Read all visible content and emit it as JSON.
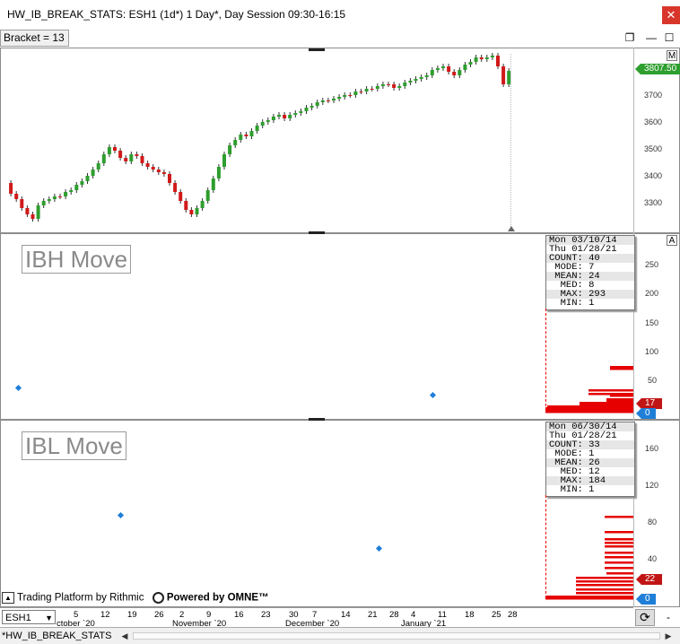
{
  "window": {
    "title": "HW_IB_BREAK_STATS: ESH1 (1d*) 1 Day*, Day Session 09:30-16:15",
    "close_label": "✕",
    "restore_label": "❐",
    "maximize_label": "☐"
  },
  "bracket": {
    "label": "Bracket = 13"
  },
  "price_panel": {
    "pin_label": "M",
    "last_price": "3807.50",
    "y_ticks": [
      "3800",
      "3700",
      "3600",
      "3500",
      "3400",
      "3300"
    ],
    "colors": {
      "up": "#2e9e2e",
      "down": "#d11919",
      "price_tag": "#2e9e2e"
    }
  },
  "ibh_panel": {
    "title": "IBH Move",
    "auto_label": "A",
    "stats": [
      "Mon 03/10/14",
      "Thu 01/28/21",
      "COUNT: 40",
      " MODE: 7",
      " MEAN: 24",
      "  MED: 8",
      "  MAX: 293",
      "  MIN: 1"
    ],
    "y_ticks": [
      "250",
      "200",
      "150",
      "100",
      "50"
    ],
    "value_tag": "17",
    "zero_tag": "0",
    "colors": {
      "bar": "#e60000",
      "tag": "#c11515",
      "zero_tag": "#1f7fd8",
      "marker": "#1f7fd8"
    }
  },
  "ibl_panel": {
    "title": "IBL Move",
    "stats": [
      "Mon 06/30/14",
      "Thu 01/28/21",
      "COUNT: 33",
      " MODE: 1",
      " MEAN: 26",
      "  MED: 12",
      "  MAX: 184",
      "  MIN: 1"
    ],
    "y_ticks": [
      "160",
      "120",
      "80",
      "40"
    ],
    "value_tag": "22",
    "zero_tag": "0",
    "colors": {
      "bar": "#e60000",
      "tag": "#c11515",
      "zero_tag": "#1f7fd8",
      "marker": "#1f7fd8"
    }
  },
  "footer": {
    "brand_left": "Trading Platform by Rithmic",
    "brand_right": "Powered by OMNE™"
  },
  "x_axis": {
    "day_ticks": [
      "5",
      "12",
      "19",
      "26",
      "2",
      "9",
      "16",
      "23",
      "30",
      "7",
      "14",
      "21",
      "28",
      "4",
      "11",
      "18",
      "25",
      "28"
    ],
    "months": [
      "ctober `20",
      "November `20",
      "December `20",
      "January `21"
    ]
  },
  "symbol_selector": {
    "value": "ESH1"
  },
  "tabs": [
    {
      "label": "*HW_IB_BREAK_STATS"
    }
  ],
  "controls": {
    "reload_icon": "reload-icon",
    "minus_label": "-",
    "scroll_left": "◀",
    "scroll_right": "▶"
  }
}
